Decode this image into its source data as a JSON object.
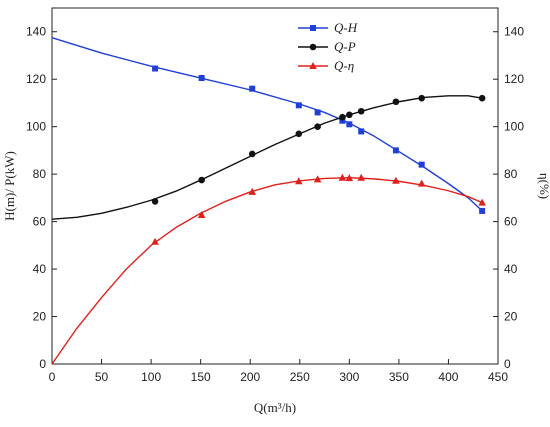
{
  "chart_data": {
    "type": "line",
    "xlabel": "Q(m³/h)",
    "ylabel_left": "H(m)/ P(kW)",
    "ylabel_right": "η(%)",
    "xlim": [
      0,
      450
    ],
    "ylim_left": [
      0,
      150
    ],
    "ylim_right": [
      0,
      150
    ],
    "x_ticks": [
      "0",
      "50",
      "100",
      "150",
      "200",
      "250",
      "300",
      "350",
      "400",
      "450"
    ],
    "y_ticks_left": [
      "0",
      "20",
      "40",
      "60",
      "80",
      "100",
      "120",
      "140"
    ],
    "y_ticks_right": [
      "0",
      "20",
      "40",
      "60",
      "80",
      "100",
      "120",
      "140"
    ],
    "grid": false,
    "legend_position": "top-center",
    "series": [
      {
        "name": "Q-H",
        "color": "#1f3fd6",
        "marker": "square",
        "axis": "left",
        "points": [
          [
            104,
            124.5
          ],
          [
            151,
            120.5
          ],
          [
            202,
            116
          ],
          [
            249,
            109
          ],
          [
            268,
            106
          ],
          [
            293,
            102.5
          ],
          [
            300,
            101
          ],
          [
            312,
            98
          ],
          [
            347,
            90
          ],
          [
            373,
            84
          ],
          [
            434,
            64.5
          ]
        ],
        "curve": [
          [
            0,
            137.5
          ],
          [
            50,
            131
          ],
          [
            100,
            125.5
          ],
          [
            150,
            120.5
          ],
          [
            200,
            115.5
          ],
          [
            250,
            109.5
          ],
          [
            275,
            106
          ],
          [
            300,
            101.5
          ],
          [
            325,
            96
          ],
          [
            350,
            89.5
          ],
          [
            375,
            83
          ],
          [
            400,
            76
          ],
          [
            420,
            70
          ],
          [
            434,
            64.5
          ]
        ]
      },
      {
        "name": "Q-P",
        "color": "#111111",
        "marker": "circle",
        "axis": "left",
        "points": [
          [
            104,
            68.5
          ],
          [
            151,
            77.5
          ],
          [
            202,
            88.5
          ],
          [
            249,
            97
          ],
          [
            268,
            100
          ],
          [
            293,
            104
          ],
          [
            300,
            105
          ],
          [
            312,
            106.5
          ],
          [
            347,
            110.5
          ],
          [
            373,
            112
          ],
          [
            434,
            112
          ]
        ],
        "curve": [
          [
            0,
            61
          ],
          [
            25,
            61.8
          ],
          [
            50,
            63.5
          ],
          [
            75,
            66
          ],
          [
            100,
            69
          ],
          [
            125,
            72.8
          ],
          [
            150,
            77.5
          ],
          [
            175,
            82.5
          ],
          [
            200,
            87.5
          ],
          [
            225,
            92.5
          ],
          [
            250,
            97
          ],
          [
            275,
            101.5
          ],
          [
            300,
            105
          ],
          [
            325,
            108
          ],
          [
            350,
            110.5
          ],
          [
            375,
            112.3
          ],
          [
            400,
            113
          ],
          [
            420,
            113
          ],
          [
            434,
            112
          ]
        ]
      },
      {
        "name": "Q-η",
        "color": "#e0201b",
        "marker": "triangle",
        "axis": "right",
        "points": [
          [
            104,
            51.5
          ],
          [
            151,
            62.8
          ],
          [
            202,
            72.5
          ],
          [
            249,
            77
          ],
          [
            268,
            77.8
          ],
          [
            293,
            78.5
          ],
          [
            300,
            78.3
          ],
          [
            312,
            78.5
          ],
          [
            347,
            77.2
          ],
          [
            373,
            76
          ],
          [
            434,
            68
          ]
        ],
        "curve": [
          [
            0,
            0
          ],
          [
            25,
            15
          ],
          [
            50,
            28
          ],
          [
            75,
            40
          ],
          [
            100,
            50
          ],
          [
            125,
            57.5
          ],
          [
            150,
            63.5
          ],
          [
            175,
            68.5
          ],
          [
            200,
            72.5
          ],
          [
            225,
            75.5
          ],
          [
            250,
            77.2
          ],
          [
            275,
            78.2
          ],
          [
            300,
            78.5
          ],
          [
            325,
            78
          ],
          [
            350,
            77
          ],
          [
            375,
            75.3
          ],
          [
            400,
            73
          ],
          [
            420,
            70.5
          ],
          [
            434,
            68
          ]
        ]
      }
    ]
  }
}
